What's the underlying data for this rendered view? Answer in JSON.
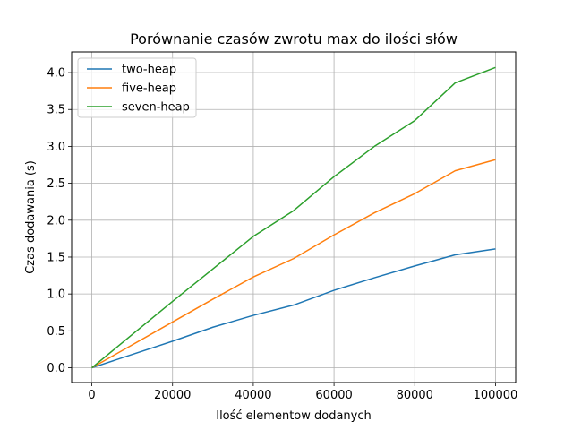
{
  "chart_data": {
    "type": "line",
    "title": "Porównanie czasów zwrotu max do ilości słów",
    "xlabel": "Ilość elementow dodanych",
    "ylabel": "Czas dodawania (s)",
    "xlim": [
      -5000,
      105000
    ],
    "ylim": [
      -0.2,
      4.28
    ],
    "x_ticks": [
      0,
      20000,
      40000,
      60000,
      80000,
      100000
    ],
    "y_ticks": [
      0.0,
      0.5,
      1.0,
      1.5,
      2.0,
      2.5,
      3.0,
      3.5,
      4.0
    ],
    "x_tick_labels": [
      "0",
      "20000",
      "40000",
      "60000",
      "80000",
      "100000"
    ],
    "y_tick_labels": [
      "0.0",
      "0.5",
      "1.0",
      "1.5",
      "2.0",
      "2.5",
      "3.0",
      "3.5",
      "4.0"
    ],
    "grid": true,
    "legend_position": "top-left",
    "x": [
      0,
      10000,
      20000,
      30000,
      40000,
      50000,
      60000,
      70000,
      80000,
      90000,
      100000
    ],
    "series": [
      {
        "name": "two-heap",
        "color": "#1f77b4",
        "values": [
          0.0,
          0.18,
          0.36,
          0.55,
          0.71,
          0.85,
          1.05,
          1.22,
          1.38,
          1.53,
          1.61
        ]
      },
      {
        "name": "five-heap",
        "color": "#ff7f0e",
        "values": [
          0.0,
          0.31,
          0.62,
          0.93,
          1.23,
          1.48,
          1.8,
          2.1,
          2.36,
          2.67,
          2.82
        ]
      },
      {
        "name": "seven-heap",
        "color": "#2ca02c",
        "values": [
          0.0,
          0.45,
          0.9,
          1.34,
          1.78,
          2.13,
          2.59,
          3.0,
          3.35,
          3.86,
          4.07
        ]
      }
    ]
  }
}
